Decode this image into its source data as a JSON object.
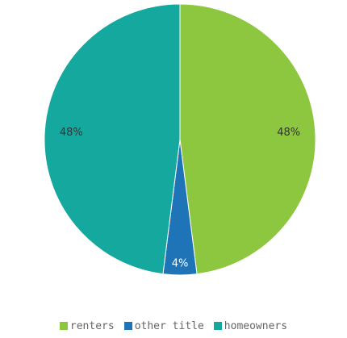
{
  "chart_data": {
    "type": "pie",
    "title": "",
    "slices": [
      {
        "name": "renters",
        "value": 48,
        "label": "48%",
        "color": "#8dc63f"
      },
      {
        "name": "other title",
        "value": 4,
        "label": "4%",
        "color": "#1f74b8"
      },
      {
        "name": "homeowners",
        "value": 48,
        "label": "48%",
        "color": "#14a89e"
      }
    ],
    "legend_position": "bottom"
  }
}
